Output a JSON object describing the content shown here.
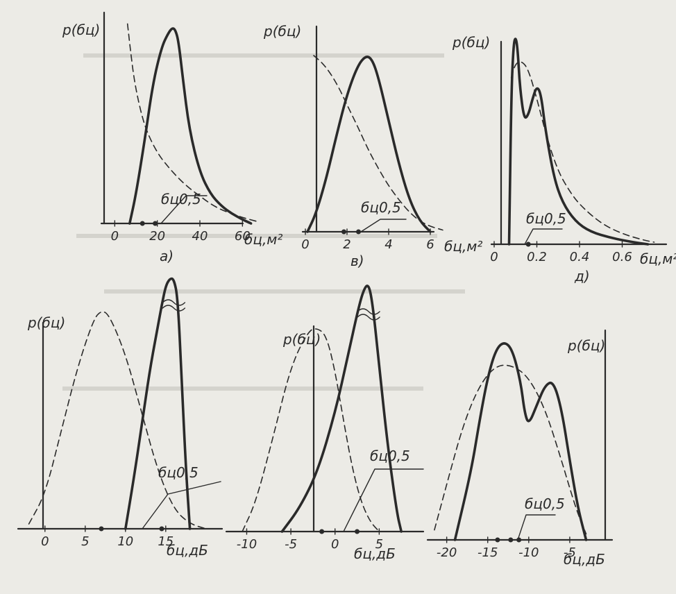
{
  "colors": {
    "ink": "#2a2a2a",
    "paper": "#ecebe6",
    "background_text": "#b8b7b1"
  },
  "chart_data": [
    {
      "id": "a",
      "type": "line",
      "panel_label": "a)",
      "ylabel": "p(бц)",
      "xlabel": "бц,м²",
      "median_label": "бц0,5",
      "xlim": [
        -5,
        70
      ],
      "ylim": [
        0,
        1
      ],
      "xticks": [
        0,
        20,
        40,
        60
      ],
      "median_markers": [
        13,
        19
      ],
      "series": [
        {
          "style": "solid",
          "x": [
            7,
            10,
            14,
            18,
            22,
            25,
            27,
            28.5,
            30,
            32,
            35,
            40,
            45,
            50,
            55,
            60,
            64
          ],
          "y": [
            0,
            0.15,
            0.42,
            0.72,
            0.9,
            0.97,
            1.0,
            0.99,
            0.93,
            0.74,
            0.48,
            0.26,
            0.15,
            0.09,
            0.05,
            0.02,
            0
          ]
        },
        {
          "style": "dashed",
          "x": [
            6,
            7,
            9,
            12,
            15,
            20,
            25,
            30,
            35,
            40,
            45,
            50,
            55,
            60,
            67
          ],
          "y": [
            1.02,
            0.92,
            0.74,
            0.58,
            0.47,
            0.36,
            0.29,
            0.23,
            0.18,
            0.14,
            0.1,
            0.07,
            0.05,
            0.03,
            0.01
          ]
        }
      ]
    },
    {
      "id": "v",
      "type": "line",
      "panel_label": "в)",
      "ylabel": "p(бц)",
      "xlabel": "бц,м²",
      "median_label": "бц0,5",
      "xlim": [
        0,
        8
      ],
      "ylim": [
        0,
        1
      ],
      "xticks": [
        0,
        2,
        4,
        6
      ],
      "median_markers": [
        1.85,
        2.55
      ],
      "series": [
        {
          "style": "solid",
          "x": [
            0.1,
            0.5,
            1.0,
            1.5,
            2.0,
            2.5,
            2.9,
            3.2,
            3.5,
            4.0,
            4.5,
            5.0,
            5.5,
            6.0
          ],
          "y": [
            0,
            0.1,
            0.3,
            0.55,
            0.78,
            0.94,
            1.0,
            0.98,
            0.88,
            0.63,
            0.38,
            0.18,
            0.06,
            0
          ]
        },
        {
          "style": "dashed",
          "x": [
            0.4,
            0.8,
            1.2,
            1.6,
            2.0,
            2.5,
            3.0,
            3.5,
            4.0,
            4.5,
            5.0,
            5.5,
            6.0,
            6.6
          ],
          "y": [
            1.0,
            0.96,
            0.9,
            0.82,
            0.72,
            0.6,
            0.47,
            0.36,
            0.26,
            0.18,
            0.11,
            0.06,
            0.03,
            0.01
          ]
        }
      ]
    },
    {
      "id": "d",
      "type": "line",
      "panel_label": "д)",
      "ylabel": "p(бц)",
      "xlabel": "бц,м²",
      "median_label": "бц0,5",
      "xlim": [
        0,
        0.8
      ],
      "ylim": [
        0,
        1
      ],
      "xticks": [
        0,
        0.2,
        0.4,
        0.6
      ],
      "median_markers": [
        0.16
      ],
      "series": [
        {
          "style": "solid",
          "x": [
            0.07,
            0.08,
            0.09,
            0.1,
            0.11,
            0.12,
            0.14,
            0.16,
            0.18,
            0.2,
            0.22,
            0.24,
            0.28,
            0.32,
            0.38,
            0.45,
            0.55,
            0.65,
            0.72
          ],
          "y": [
            0,
            0.7,
            0.95,
            1.0,
            0.94,
            0.76,
            0.6,
            0.62,
            0.7,
            0.76,
            0.72,
            0.55,
            0.32,
            0.2,
            0.11,
            0.06,
            0.03,
            0.01,
            0
          ]
        },
        {
          "style": "dashed",
          "x": [
            0.08,
            0.1,
            0.13,
            0.16,
            0.2,
            0.25,
            0.3,
            0.35,
            0.4,
            0.5,
            0.6,
            0.7,
            0.75
          ],
          "y": [
            0.8,
            0.87,
            0.88,
            0.84,
            0.7,
            0.5,
            0.35,
            0.26,
            0.19,
            0.1,
            0.05,
            0.02,
            0.01
          ]
        }
      ]
    },
    {
      "id": "g",
      "type": "line",
      "panel_label": "",
      "ylabel": "p(бц)",
      "xlabel": "бц,дБ",
      "median_label": "бц0,5",
      "xlim": [
        -3,
        22
      ],
      "ylim": [
        0,
        1
      ],
      "xticks": [
        0,
        5,
        10,
        15
      ],
      "median_markers": [
        7,
        14.5
      ],
      "series": [
        {
          "style": "solid",
          "x": [
            10,
            11,
            12,
            13,
            14,
            14.5,
            15,
            15.5,
            16,
            16.5,
            17,
            17.5,
            18
          ],
          "y": [
            0,
            0.2,
            0.42,
            0.65,
            0.83,
            0.92,
            1.0,
            1.03,
            1.03,
            0.95,
            0.6,
            0.25,
            0
          ]
        },
        {
          "style": "dashed",
          "x": [
            -2,
            0,
            2,
            4,
            6,
            7,
            8,
            10,
            12,
            14,
            16,
            18,
            20
          ],
          "y": [
            0.02,
            0.14,
            0.4,
            0.66,
            0.86,
            0.9,
            0.88,
            0.72,
            0.48,
            0.24,
            0.08,
            0.02,
            0
          ]
        }
      ]
    },
    {
      "id": "e",
      "type": "line",
      "panel_label": "",
      "ylabel": "p(бц)",
      "xlabel": "бц,дБ",
      "median_label": "бц0,5",
      "xlim": [
        -12,
        10
      ],
      "ylim": [
        0,
        1
      ],
      "xticks": [
        -10,
        -5,
        0,
        5
      ],
      "median_markers": [
        -1.5,
        2.5
      ],
      "series": [
        {
          "style": "solid",
          "x": [
            -6,
            -4,
            -2,
            0,
            1.5,
            2.5,
            3.2,
            3.8,
            4.3,
            5,
            6,
            7,
            7.5
          ],
          "y": [
            0,
            0.1,
            0.25,
            0.5,
            0.75,
            0.92,
            1.02,
            1.05,
            0.95,
            0.7,
            0.35,
            0.08,
            0
          ]
        },
        {
          "style": "dashed",
          "x": [
            -10.5,
            -9,
            -7,
            -5,
            -3,
            -2,
            -1,
            0,
            1,
            2,
            3,
            4,
            5
          ],
          "y": [
            0,
            0.12,
            0.4,
            0.7,
            0.85,
            0.86,
            0.83,
            0.68,
            0.46,
            0.26,
            0.12,
            0.04,
            0
          ]
        }
      ]
    },
    {
      "id": "zh",
      "type": "line",
      "panel_label": "",
      "ylabel": "p(бц)",
      "xlabel": "бц,дБ",
      "median_label": "бц0,5",
      "xlim": [
        -22,
        0
      ],
      "ylim": [
        0,
        1
      ],
      "xticks": [
        -20,
        -15,
        -10,
        -5
      ],
      "median_markers": [
        -13.8,
        -12.2,
        -11.2
      ],
      "series": [
        {
          "style": "solid",
          "x": [
            -19,
            -17,
            -16,
            -15,
            -14,
            -13,
            -12,
            -11,
            -10.5,
            -10,
            -9,
            -8,
            -7,
            -6,
            -5,
            -4,
            -3
          ],
          "y": [
            0,
            0.35,
            0.6,
            0.82,
            0.96,
            1.0,
            0.96,
            0.8,
            0.64,
            0.58,
            0.68,
            0.78,
            0.8,
            0.66,
            0.4,
            0.16,
            0
          ]
        },
        {
          "style": "dashed",
          "x": [
            -21.5,
            -20,
            -18,
            -16,
            -14,
            -12,
            -10,
            -8,
            -6,
            -5,
            -4,
            -3
          ],
          "y": [
            0.05,
            0.28,
            0.58,
            0.78,
            0.88,
            0.88,
            0.82,
            0.66,
            0.4,
            0.26,
            0.13,
            0.03
          ]
        }
      ]
    }
  ]
}
